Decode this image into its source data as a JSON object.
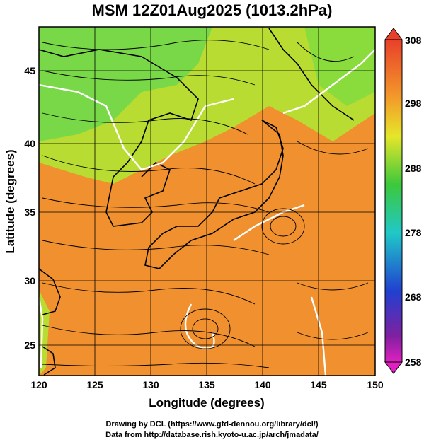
{
  "title": "MSM 12Z01Aug2025 (1013.2hPa)",
  "x_axis": {
    "label": "Longitude (degrees)",
    "ticks": [
      "120",
      "125",
      "130",
      "135",
      "140",
      "145",
      "150"
    ]
  },
  "y_axis": {
    "label": "Latitude  (degrees)",
    "ticks": [
      "25",
      "30",
      "35",
      "40",
      "45"
    ]
  },
  "colorbar": {
    "ticks": [
      "308",
      "298",
      "288",
      "278",
      "268",
      "258"
    ]
  },
  "credits": {
    "line1": "Drawing by DCL (https://www.gfd-dennou.org/library/dcl/)",
    "line2": "Data from http://database.rish.kyoto-u.ac.jp/arch/jmadata/"
  },
  "colors": {
    "warm": "#f08c2c",
    "mild": "#c8e030",
    "cool": "#60d860",
    "streamline": "#000000",
    "contour": "#ffffff"
  }
}
